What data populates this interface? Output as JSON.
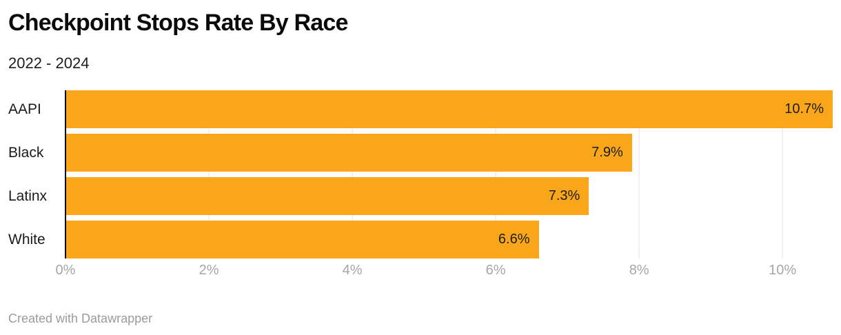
{
  "header": {
    "title": "Checkpoint Stops Rate By Race",
    "subtitle": "2022 - 2024"
  },
  "footer": {
    "attribution": "Created with Datawrapper"
  },
  "colors": {
    "bar": "#F9A61B",
    "axis_line": "#000000",
    "grid_line": "#e0e0e0",
    "tick_label": "#a6a6a6",
    "value_label": "#1d1d1d",
    "background": "#ffffff"
  },
  "chart_data": {
    "type": "bar",
    "orientation": "horizontal",
    "title": "Checkpoint Stops Rate By Race",
    "subtitle": "2022 - 2024",
    "categories": [
      "AAPI",
      "Black",
      "Latinx",
      "White"
    ],
    "values": [
      10.7,
      7.9,
      7.3,
      6.6
    ],
    "value_labels": [
      "10.7%",
      "7.9%",
      "7.3%",
      "6.6%"
    ],
    "xlabel": "",
    "ylabel": "",
    "xlim": [
      0,
      10.7
    ],
    "x_ticks": [
      0,
      2,
      4,
      6,
      8,
      10
    ],
    "x_tick_labels": [
      "0%",
      "2%",
      "4%",
      "6%",
      "8%",
      "10%"
    ],
    "grid": true,
    "legend": false,
    "bar_color": "#F9A61B"
  }
}
